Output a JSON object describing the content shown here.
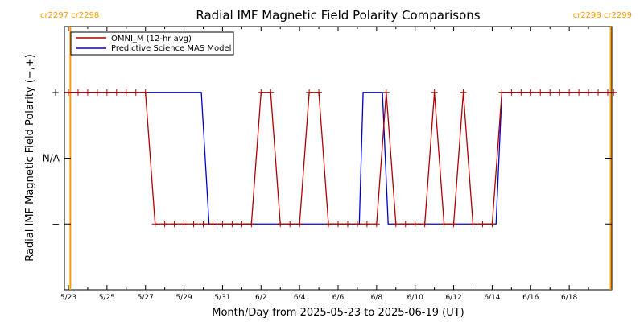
{
  "chart_data": {
    "type": "line",
    "title": "Radial IMF Magnetic Field Polarity Comparisons",
    "xlabel": "Month/Day from 2025-05-23 to 2025-06-19 (UT)",
    "ylabel": "Radial IMF Magnetic Field Polarity (−,+)",
    "x_tick_labels": [
      "5/23",
      "5/25",
      "5/27",
      "5/29",
      "5/31",
      "6/2",
      "6/4",
      "6/6",
      "6/8",
      "6/10",
      "6/12",
      "6/14",
      "6/16",
      "6/18"
    ],
    "x_tick_days": [
      0,
      2,
      4,
      6,
      8,
      10,
      12,
      14,
      16,
      18,
      20,
      22,
      24,
      26
    ],
    "xlim": [
      0,
      28
    ],
    "y_tick_labels": [
      "+",
      "N/A",
      "−"
    ],
    "y_tick_values": [
      1,
      0,
      -1
    ],
    "ylim": [
      -2,
      2
    ],
    "grid": false,
    "legend_position": "top-left",
    "rotation_markers": [
      {
        "day": 0.1,
        "labels": [
          "cr2297",
          "cr2298"
        ],
        "label_side": "left"
      },
      {
        "day": 28.15,
        "labels": [
          "cr2298",
          "cr2299"
        ],
        "label_side": "right"
      }
    ],
    "series": [
      {
        "name": "OMNI_M (12-hr avg)",
        "color": "#b30000",
        "markers": "plus",
        "x": [
          0,
          0.5,
          1,
          1.5,
          2,
          2.5,
          3,
          3.5,
          4,
          4.5,
          5,
          5.5,
          6,
          6.5,
          7,
          7.5,
          8,
          8.5,
          9,
          9.5,
          10,
          10.5,
          11,
          11.5,
          12,
          12.5,
          13,
          13.5,
          14,
          14.5,
          15,
          15.5,
          16,
          16.5,
          17,
          17.5,
          18,
          18.5,
          19,
          19.5,
          20,
          20.5,
          21,
          21.5,
          22,
          22.5,
          23,
          23.5,
          24,
          24.5,
          25,
          25.5,
          26,
          26.5,
          27,
          27.5,
          28,
          28.5
        ],
        "values": [
          1,
          1,
          1,
          1,
          1,
          1,
          1,
          1,
          1,
          -1,
          -1,
          -1,
          -1,
          -1,
          -1,
          -1,
          -1,
          -1,
          -1,
          -1,
          1,
          1,
          -1,
          -1,
          -1,
          1,
          1,
          -1,
          -1,
          -1,
          -1,
          -1,
          -1,
          1,
          -1,
          -1,
          -1,
          -1,
          1,
          -1,
          -1,
          1,
          -1,
          -1,
          -1,
          1,
          1,
          1,
          1,
          1,
          1,
          1,
          1,
          1,
          1,
          1,
          1,
          1
        ]
      },
      {
        "name": "Predictive Science MAS Model",
        "color": "#0000cc",
        "markers": "none",
        "x": [
          0,
          6.9,
          7.3,
          15.1,
          15.3,
          16.3,
          16.6,
          22.2,
          22.5,
          28.5
        ],
        "values": [
          1,
          1,
          -1,
          -1,
          1,
          1,
          -1,
          -1,
          1,
          1
        ]
      }
    ]
  }
}
